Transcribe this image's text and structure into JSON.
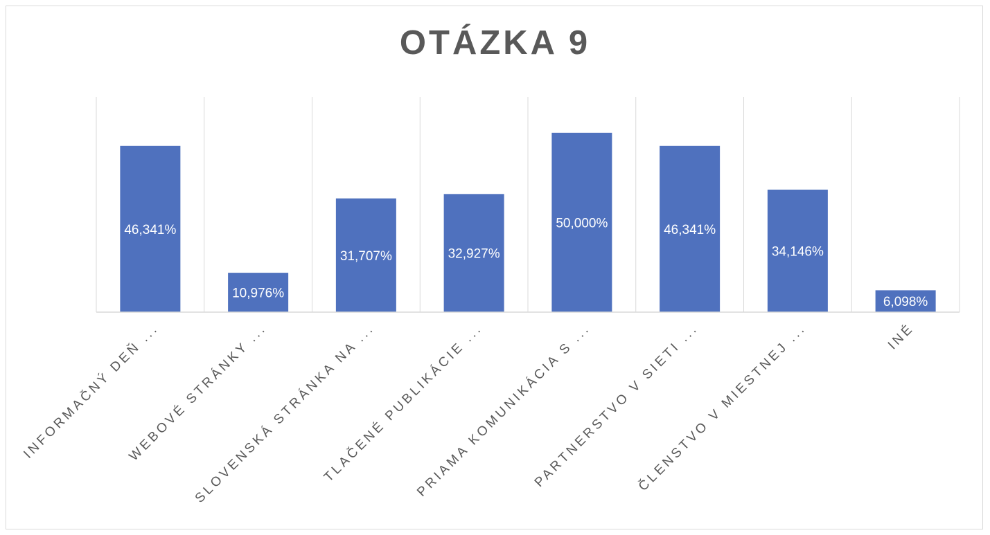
{
  "chart_data": {
    "type": "bar",
    "title": "OTÁZKA 9",
    "categories": [
      "INFORMAČNÝ DEŇ ...",
      "WEBOVÉ STRÁNKY ...",
      "SLOVENSKÁ STRÁNKA NA ...",
      "TLAČENÉ PUBLIKÁCIE ...",
      "PRIAMA KOMUNIKÁCIA S ...",
      "PARTNERSTVO V SIETI ...",
      "ČLENSTVO V MIESTNEJ ...",
      "INÉ"
    ],
    "values": [
      46.341,
      10.976,
      31.707,
      32.927,
      50.0,
      46.341,
      34.146,
      6.098
    ],
    "data_labels": [
      "46,341%",
      "10,976%",
      "31,707%",
      "32,927%",
      "50,000%",
      "46,341%",
      "34,146%",
      "6,098%"
    ],
    "ylim": [
      0,
      60
    ],
    "grid": "vertical category separators",
    "legend": "none",
    "bar_color": "#4f71be",
    "label_color": "#ffffff",
    "axis_text_color": "#595959"
  }
}
